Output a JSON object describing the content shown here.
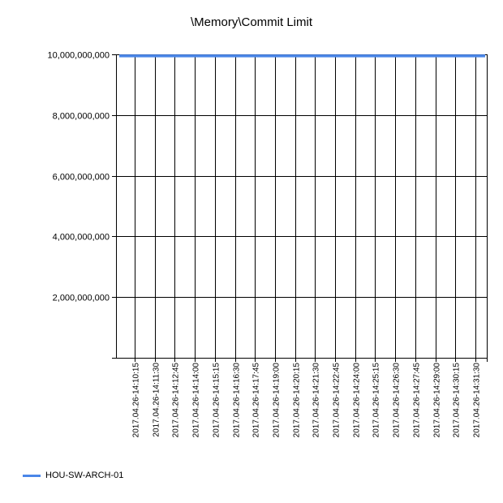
{
  "chart_data": {
    "type": "line",
    "title": "\\Memory\\Commit Limit",
    "xlabel": "",
    "ylabel": "",
    "ylim": [
      0,
      10000000000
    ],
    "yticks": [
      0,
      2000000000,
      4000000000,
      6000000000,
      8000000000,
      10000000000
    ],
    "ytick_labels": [
      "",
      "2,000,000,000",
      "4,000,000,000",
      "6,000,000,000",
      "8,000,000,000",
      "10,000,000,000"
    ],
    "categories": [
      "2017.04.26-14:10:15",
      "2017.04.26-14:11:30",
      "2017.04.26-14:12:45",
      "2017.04.26-14:14:00",
      "2017.04.26-14:15:15",
      "2017.04.26-14:16:30",
      "2017.04.26-14:17:45",
      "2017.04.26-14:19:00",
      "2017.04.26-14:20:15",
      "2017.04.26-14:21:30",
      "2017.04.26-14:22:45",
      "2017.04.26-14:24:00",
      "2017.04.26-14:25:15",
      "2017.04.26-14:26:30",
      "2017.04.26-14:27:45",
      "2017.04.26-14:29:00",
      "2017.04.26-14:30:15",
      "2017.04.26-14:31:30"
    ],
    "series": [
      {
        "name": "HOU-SW-ARCH-01",
        "color": "#4a86e8",
        "values": [
          9950000000,
          9950000000,
          9950000000,
          9950000000,
          9950000000,
          9950000000,
          9950000000,
          9950000000,
          9950000000,
          9950000000,
          9950000000,
          9950000000,
          9950000000,
          9950000000,
          9950000000,
          9950000000,
          9950000000,
          9950000000
        ]
      }
    ],
    "grid": true,
    "legend_position": "bottom-left"
  }
}
